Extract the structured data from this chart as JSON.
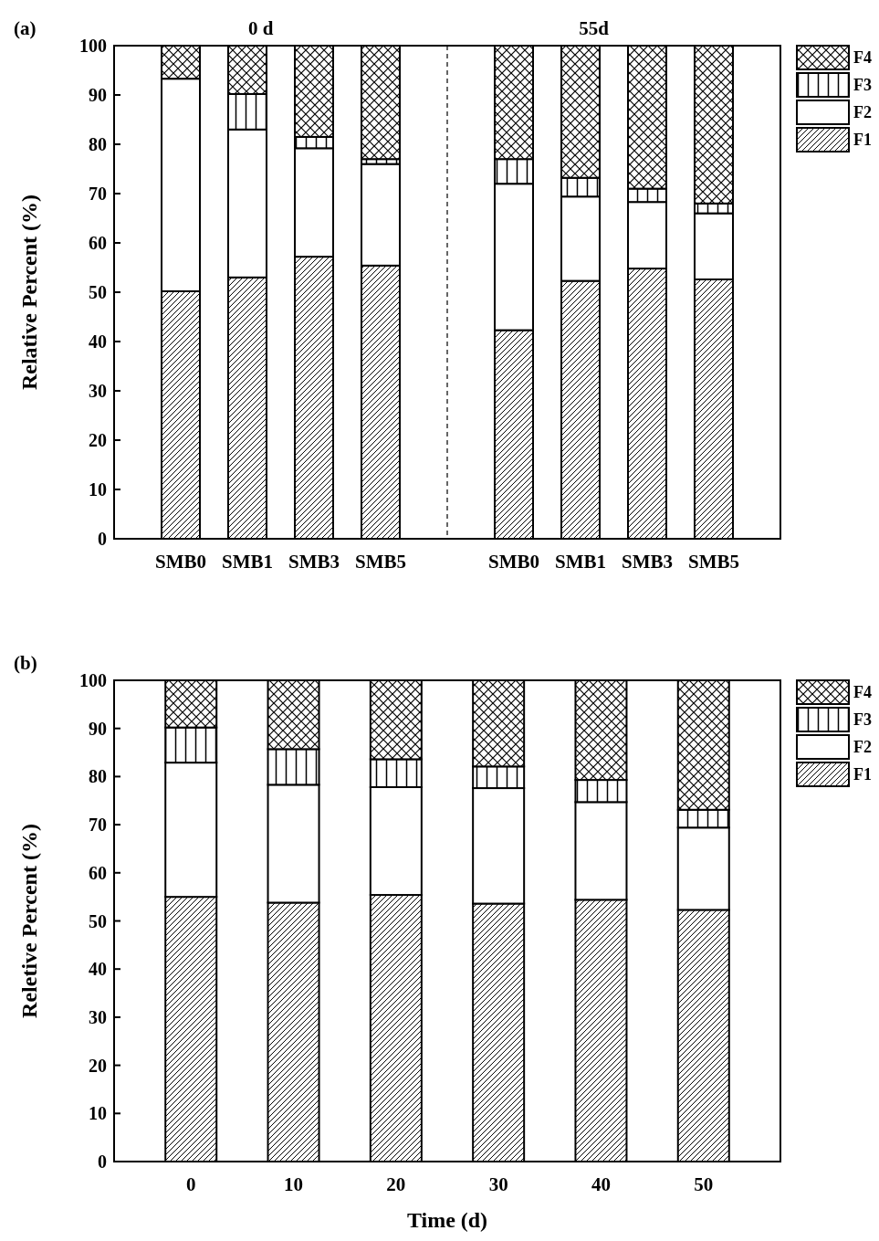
{
  "chart_data": [
    {
      "type": "bar",
      "title": "(a)",
      "ylabel": "Relative Percent (%)",
      "stacked": true,
      "annotations": [
        "0 d",
        "55d"
      ],
      "categories": [
        "SMB0",
        "SMB1",
        "SMB3",
        "SMB5",
        null,
        "SMB0",
        "SMB1",
        "SMB3",
        "SMB5"
      ],
      "series": [
        {
          "name": "F1",
          "color": "#000000",
          "values": [
            50.2,
            53.0,
            57.2,
            55.4,
            null,
            42.3,
            52.3,
            54.8,
            52.6
          ]
        },
        {
          "name": "F2",
          "color": "#ffffff",
          "values": [
            43.1,
            30.0,
            22.0,
            20.6,
            null,
            29.7,
            17.1,
            13.5,
            13.4
          ]
        },
        {
          "name": "F3",
          "color": "#000000",
          "values": [
            0,
            7.2,
            2.3,
            1.0,
            null,
            5.0,
            3.8,
            2.7,
            2.0
          ]
        },
        {
          "name": "F4",
          "color": "#000000",
          "values": [
            6.7,
            9.8,
            18.5,
            23.0,
            null,
            23.0,
            26.8,
            29.0,
            32.0
          ]
        }
      ],
      "ylim": [
        0,
        100
      ],
      "yticks": [
        0,
        10,
        20,
        30,
        40,
        50,
        60,
        70,
        80,
        90,
        100
      ],
      "legend": "top right"
    },
    {
      "type": "bar",
      "title": "(b)",
      "xlabel": "Time (d)",
      "ylabel": "Reletive Percent (%)",
      "stacked": true,
      "categories": [
        "0",
        "10",
        "20",
        "30",
        "40",
        "50"
      ],
      "series": [
        {
          "name": "F1",
          "color": "#000000",
          "values": [
            55.0,
            53.8,
            55.4,
            53.6,
            54.4,
            52.3
          ]
        },
        {
          "name": "F2",
          "color": "#ffffff",
          "values": [
            27.9,
            24.5,
            22.4,
            24.0,
            20.3,
            17.1
          ]
        },
        {
          "name": "F3",
          "color": "#000000",
          "values": [
            7.3,
            7.4,
            5.8,
            4.5,
            4.6,
            3.7
          ]
        },
        {
          "name": "F4",
          "color": "#000000",
          "values": [
            9.8,
            14.3,
            16.4,
            17.9,
            20.7,
            26.9
          ]
        }
      ],
      "ylim": [
        0,
        100
      ],
      "yticks": [
        0,
        10,
        20,
        30,
        40,
        50,
        60,
        70,
        80,
        90,
        100
      ],
      "legend": "top right",
      "grid": false
    }
  ]
}
